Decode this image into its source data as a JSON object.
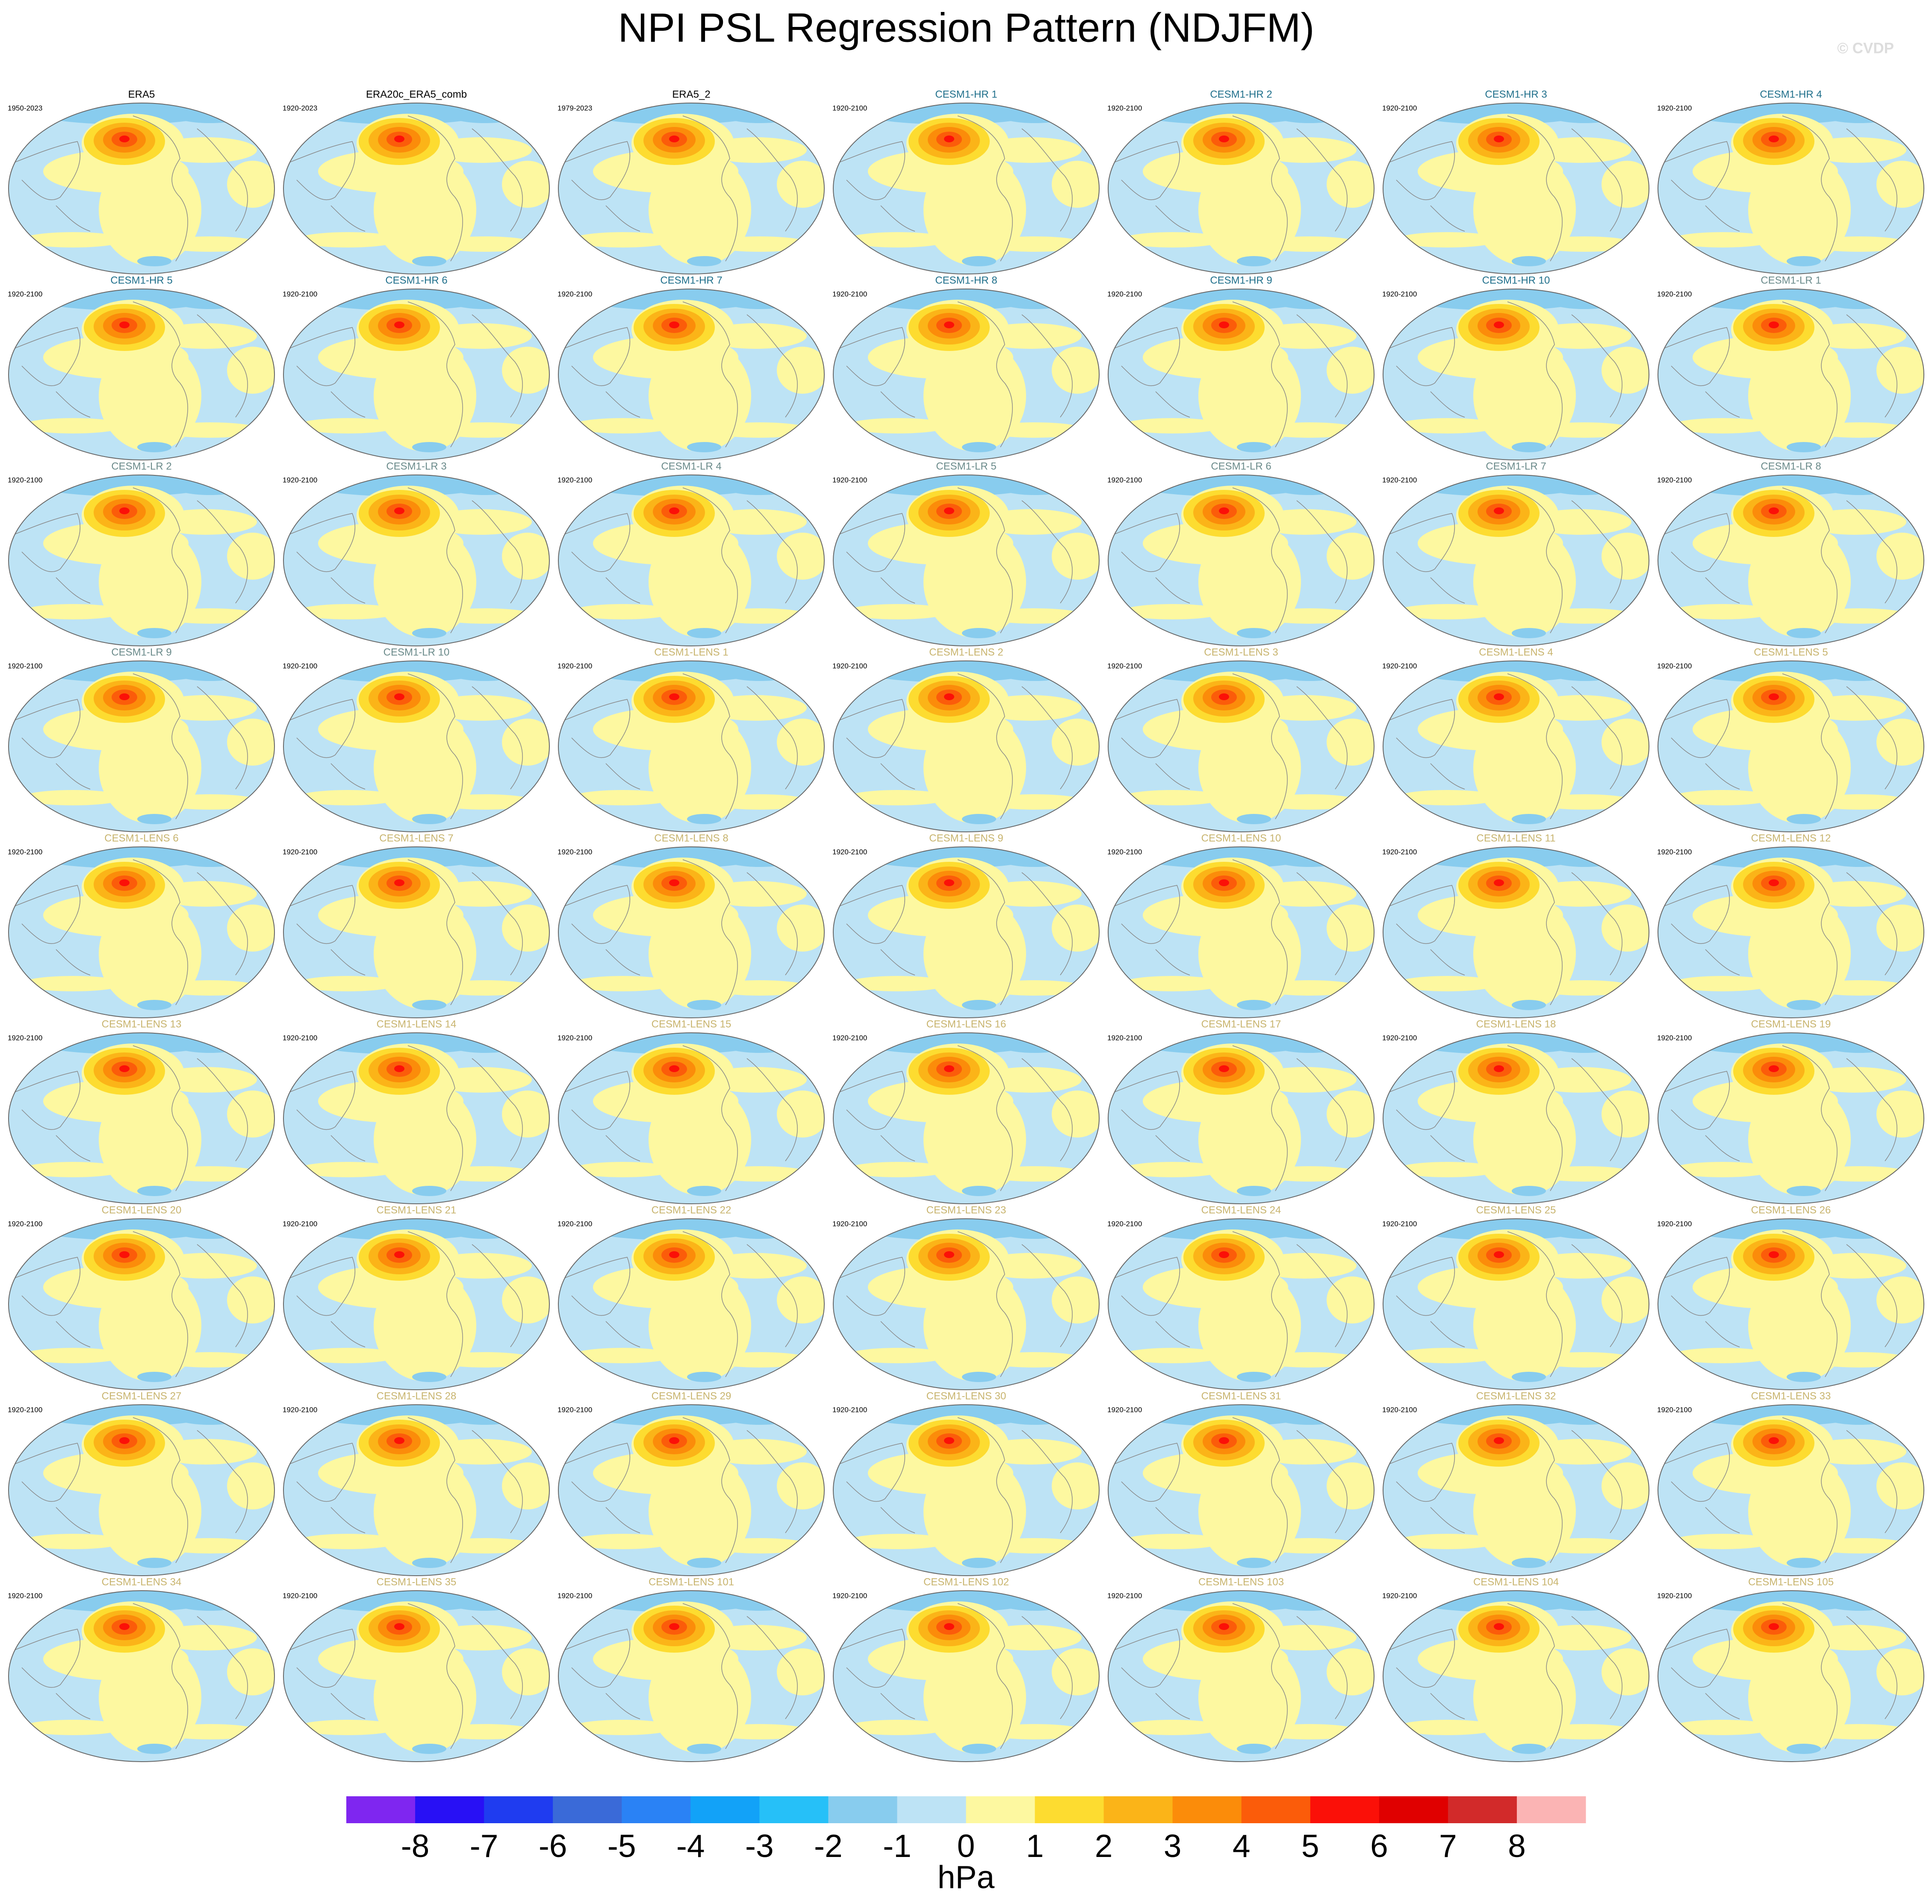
{
  "title": "NPI PSL Regression Pattern (NDJFM)",
  "watermark": "© CVDP",
  "panels": [
    {
      "title": "ERA5",
      "period": "1950-2023",
      "color": "#000000"
    },
    {
      "title": "ERA20c_ERA5_comb",
      "period": "1920-2023",
      "color": "#000000"
    },
    {
      "title": "ERA5_2",
      "period": "1979-2023",
      "color": "#000000"
    },
    {
      "title": "CESM1-HR 1",
      "period": "1920-2100",
      "color": "#1f6f8b"
    },
    {
      "title": "CESM1-HR 2",
      "period": "1920-2100",
      "color": "#1f6f8b"
    },
    {
      "title": "CESM1-HR 3",
      "period": "1920-2100",
      "color": "#1f6f8b"
    },
    {
      "title": "CESM1-HR 4",
      "period": "1920-2100",
      "color": "#1f6f8b"
    },
    {
      "title": "CESM1-HR 5",
      "period": "1920-2100",
      "color": "#1f6f8b"
    },
    {
      "title": "CESM1-HR 6",
      "period": "1920-2100",
      "color": "#1f6f8b"
    },
    {
      "title": "CESM1-HR 7",
      "period": "1920-2100",
      "color": "#1f6f8b"
    },
    {
      "title": "CESM1-HR 8",
      "period": "1920-2100",
      "color": "#1f6f8b"
    },
    {
      "title": "CESM1-HR 9",
      "period": "1920-2100",
      "color": "#1f6f8b"
    },
    {
      "title": "CESM1-HR 10",
      "period": "1920-2100",
      "color": "#1f6f8b"
    },
    {
      "title": "CESM1-LR 1",
      "period": "1920-2100",
      "color": "#6a8a8a"
    },
    {
      "title": "CESM1-LR 2",
      "period": "1920-2100",
      "color": "#6a8a8a"
    },
    {
      "title": "CESM1-LR 3",
      "period": "1920-2100",
      "color": "#6a8a8a"
    },
    {
      "title": "CESM1-LR 4",
      "period": "1920-2100",
      "color": "#6a8a8a"
    },
    {
      "title": "CESM1-LR 5",
      "period": "1920-2100",
      "color": "#6a8a8a"
    },
    {
      "title": "CESM1-LR 6",
      "period": "1920-2100",
      "color": "#6a8a8a"
    },
    {
      "title": "CESM1-LR 7",
      "period": "1920-2100",
      "color": "#6a8a8a"
    },
    {
      "title": "CESM1-LR 8",
      "period": "1920-2100",
      "color": "#6a8a8a"
    },
    {
      "title": "CESM1-LR 9",
      "period": "1920-2100",
      "color": "#6a8a8a"
    },
    {
      "title": "CESM1-LR 10",
      "period": "1920-2100",
      "color": "#6a8a8a"
    },
    {
      "title": "CESM1-LENS 1",
      "period": "1920-2100",
      "color": "#c8b46e"
    },
    {
      "title": "CESM1-LENS 2",
      "period": "1920-2100",
      "color": "#c8b46e"
    },
    {
      "title": "CESM1-LENS 3",
      "period": "1920-2100",
      "color": "#c8b46e"
    },
    {
      "title": "CESM1-LENS 4",
      "period": "1920-2100",
      "color": "#c8b46e"
    },
    {
      "title": "CESM1-LENS 5",
      "period": "1920-2100",
      "color": "#c8b46e"
    },
    {
      "title": "CESM1-LENS 6",
      "period": "1920-2100",
      "color": "#c8b46e"
    },
    {
      "title": "CESM1-LENS 7",
      "period": "1920-2100",
      "color": "#c8b46e"
    },
    {
      "title": "CESM1-LENS 8",
      "period": "1920-2100",
      "color": "#c8b46e"
    },
    {
      "title": "CESM1-LENS 9",
      "period": "1920-2100",
      "color": "#c8b46e"
    },
    {
      "title": "CESM1-LENS 10",
      "period": "1920-2100",
      "color": "#c8b46e"
    },
    {
      "title": "CESM1-LENS 11",
      "period": "1920-2100",
      "color": "#c8b46e"
    },
    {
      "title": "CESM1-LENS 12",
      "period": "1920-2100",
      "color": "#c8b46e"
    },
    {
      "title": "CESM1-LENS 13",
      "period": "1920-2100",
      "color": "#c8b46e"
    },
    {
      "title": "CESM1-LENS 14",
      "period": "1920-2100",
      "color": "#c8b46e"
    },
    {
      "title": "CESM1-LENS 15",
      "period": "1920-2100",
      "color": "#c8b46e"
    },
    {
      "title": "CESM1-LENS 16",
      "period": "1920-2100",
      "color": "#c8b46e"
    },
    {
      "title": "CESM1-LENS 17",
      "period": "1920-2100",
      "color": "#c8b46e"
    },
    {
      "title": "CESM1-LENS 18",
      "period": "1920-2100",
      "color": "#c8b46e"
    },
    {
      "title": "CESM1-LENS 19",
      "period": "1920-2100",
      "color": "#c8b46e"
    },
    {
      "title": "CESM1-LENS 20",
      "period": "1920-2100",
      "color": "#c8b46e"
    },
    {
      "title": "CESM1-LENS 21",
      "period": "1920-2100",
      "color": "#c8b46e"
    },
    {
      "title": "CESM1-LENS 22",
      "period": "1920-2100",
      "color": "#c8b46e"
    },
    {
      "title": "CESM1-LENS 23",
      "period": "1920-2100",
      "color": "#c8b46e"
    },
    {
      "title": "CESM1-LENS 24",
      "period": "1920-2100",
      "color": "#c8b46e"
    },
    {
      "title": "CESM1-LENS 25",
      "period": "1920-2100",
      "color": "#c8b46e"
    },
    {
      "title": "CESM1-LENS 26",
      "period": "1920-2100",
      "color": "#c8b46e"
    },
    {
      "title": "CESM1-LENS 27",
      "period": "1920-2100",
      "color": "#c8b46e"
    },
    {
      "title": "CESM1-LENS 28",
      "period": "1920-2100",
      "color": "#c8b46e"
    },
    {
      "title": "CESM1-LENS 29",
      "period": "1920-2100",
      "color": "#c8b46e"
    },
    {
      "title": "CESM1-LENS 30",
      "period": "1920-2100",
      "color": "#c8b46e"
    },
    {
      "title": "CESM1-LENS 31",
      "period": "1920-2100",
      "color": "#c8b46e"
    },
    {
      "title": "CESM1-LENS 32",
      "period": "1920-2100",
      "color": "#c8b46e"
    },
    {
      "title": "CESM1-LENS 33",
      "period": "1920-2100",
      "color": "#c8b46e"
    },
    {
      "title": "CESM1-LENS 34",
      "period": "1920-2100",
      "color": "#c8b46e"
    },
    {
      "title": "CESM1-LENS 35",
      "period": "1920-2100",
      "color": "#c8b46e"
    },
    {
      "title": "CESM1-LENS 101",
      "period": "1920-2100",
      "color": "#c8b46e"
    },
    {
      "title": "CESM1-LENS 102",
      "period": "1920-2100",
      "color": "#c8b46e"
    },
    {
      "title": "CESM1-LENS 103",
      "period": "1920-2100",
      "color": "#c8b46e"
    },
    {
      "title": "CESM1-LENS 104",
      "period": "1920-2100",
      "color": "#c8b46e"
    },
    {
      "title": "CESM1-LENS 105",
      "period": "1920-2100",
      "color": "#c8b46e"
    }
  ],
  "colorbar": {
    "unit": "hPa",
    "ticks": [
      -8,
      -7,
      -6,
      -5,
      -4,
      -3,
      -2,
      -1,
      0,
      1,
      2,
      3,
      4,
      5,
      6,
      7,
      8
    ],
    "colors": [
      "#7f26f0",
      "#2810f5",
      "#1f3cf0",
      "#3a6ad8",
      "#2a82f5",
      "#12a2f8",
      "#26c0f8",
      "#88ccee",
      "#bde3f5",
      "#fdf8a0",
      "#fddc30",
      "#fbb418",
      "#fb8c0a",
      "#fb5c0a",
      "#fb1008",
      "#e00000",
      "#d22a2a",
      "#fbb4b4"
    ]
  }
}
